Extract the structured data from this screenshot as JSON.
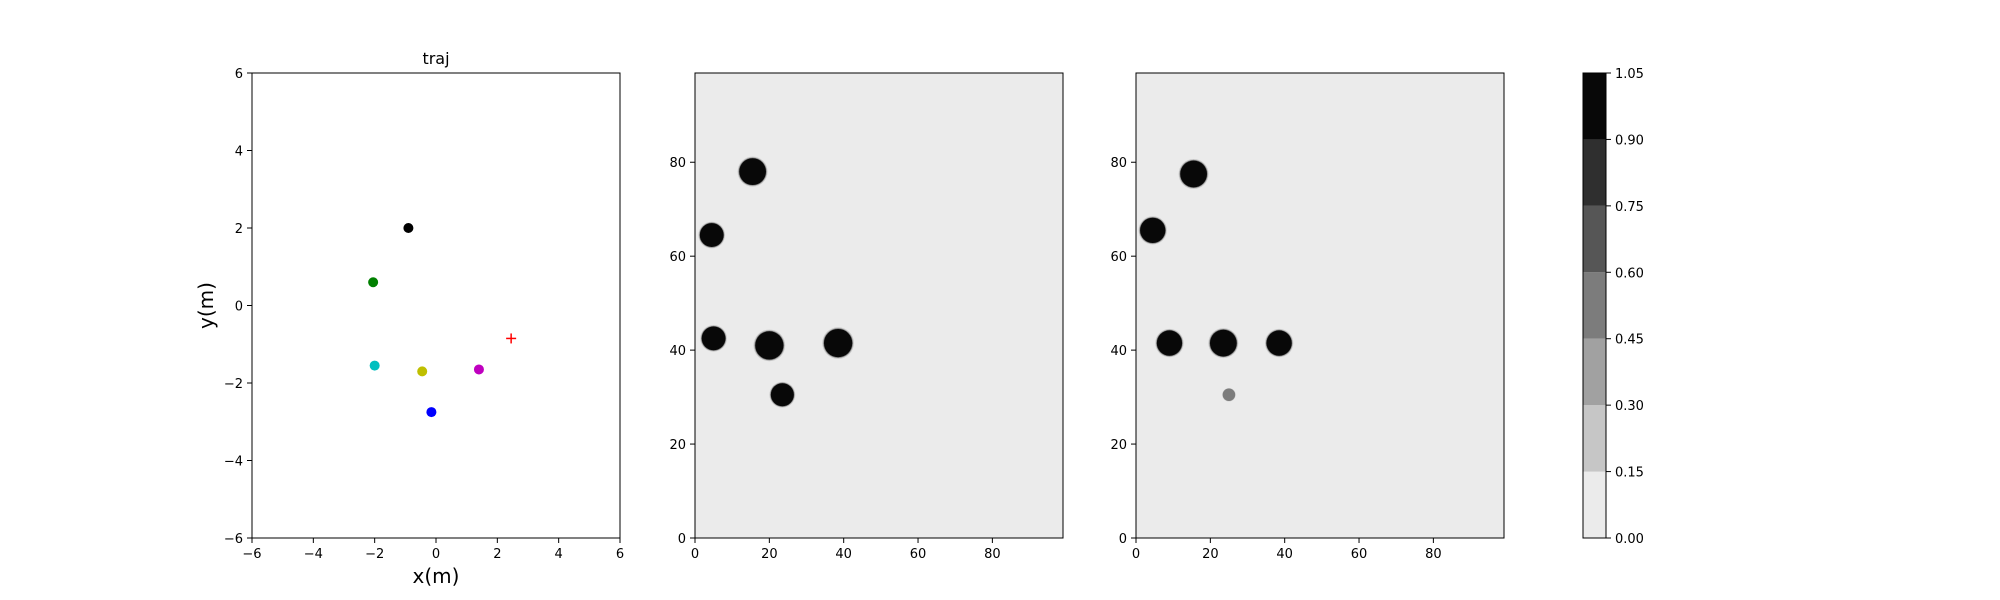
{
  "chart_data": [
    {
      "type": "scatter",
      "title": "traj",
      "xlabel": "x(m)",
      "ylabel": "y(m)",
      "xlim": [
        -6,
        6
      ],
      "ylim": [
        -6,
        6
      ],
      "xticks": [
        -6,
        -4,
        -2,
        0,
        2,
        4,
        6
      ],
      "yticks": [
        -6,
        -4,
        -2,
        0,
        2,
        4,
        6
      ],
      "grid": false,
      "points": [
        {
          "x": -0.9,
          "y": 2.0,
          "color": "#000000",
          "marker": "circle"
        },
        {
          "x": -2.05,
          "y": 0.6,
          "color": "#008000",
          "marker": "circle"
        },
        {
          "x": -2.0,
          "y": -1.55,
          "color": "#00bfbf",
          "marker": "circle"
        },
        {
          "x": -0.45,
          "y": -1.7,
          "color": "#bfbf00",
          "marker": "circle"
        },
        {
          "x": 1.4,
          "y": -1.65,
          "color": "#bf00bf",
          "marker": "circle"
        },
        {
          "x": -0.15,
          "y": -2.75,
          "color": "#0000ff",
          "marker": "circle"
        },
        {
          "x": 2.45,
          "y": -0.85,
          "color": "#ff0000",
          "marker": "plus"
        }
      ]
    },
    {
      "type": "heatmap",
      "xlim": [
        0,
        99
      ],
      "ylim": [
        0,
        99
      ],
      "xticks": [
        0,
        20,
        40,
        60,
        80
      ],
      "yticks": [
        0,
        20,
        40,
        60,
        80
      ],
      "background_value": 0.0,
      "blobs": [
        {
          "x": 15.5,
          "y": 78,
          "r": 3.6,
          "value": 1.0
        },
        {
          "x": 4.5,
          "y": 64.5,
          "r": 3.2,
          "value": 1.0
        },
        {
          "x": 5,
          "y": 42.5,
          "r": 3.2,
          "value": 1.0
        },
        {
          "x": 20,
          "y": 41,
          "r": 3.8,
          "value": 1.0
        },
        {
          "x": 38.5,
          "y": 41.5,
          "r": 3.8,
          "value": 1.0
        },
        {
          "x": 23.5,
          "y": 30.5,
          "r": 3.1,
          "value": 1.0
        }
      ]
    },
    {
      "type": "heatmap",
      "xlim": [
        0,
        99
      ],
      "ylim": [
        0,
        99
      ],
      "xticks": [
        0,
        20,
        40,
        60,
        80
      ],
      "yticks": [
        0,
        20,
        40,
        60,
        80
      ],
      "background_value": 0.0,
      "blobs": [
        {
          "x": 15.5,
          "y": 77.5,
          "r": 3.6,
          "value": 1.0
        },
        {
          "x": 4.5,
          "y": 65.5,
          "r": 3.4,
          "value": 0.9
        },
        {
          "x": 9,
          "y": 41.5,
          "r": 3.4,
          "value": 1.0
        },
        {
          "x": 23.5,
          "y": 41.5,
          "r": 3.6,
          "value": 1.0
        },
        {
          "x": 38.5,
          "y": 41.5,
          "r": 3.4,
          "value": 1.0
        },
        {
          "x": 25,
          "y": 30.5,
          "r": 1.6,
          "value": 0.5
        }
      ]
    },
    {
      "type": "colorbar",
      "levels": [
        0.0,
        0.15,
        0.3,
        0.45,
        0.6,
        0.75,
        0.9,
        1.05
      ],
      "tick_labels": [
        "0.00",
        "0.15",
        "0.30",
        "0.45",
        "0.60",
        "0.75",
        "0.90",
        "1.05"
      ],
      "colors": [
        "#ebebeb",
        "#c6c6c6",
        "#a1a1a1",
        "#7c7c7c",
        "#565656",
        "#2f2f2f",
        "#080808"
      ]
    }
  ]
}
